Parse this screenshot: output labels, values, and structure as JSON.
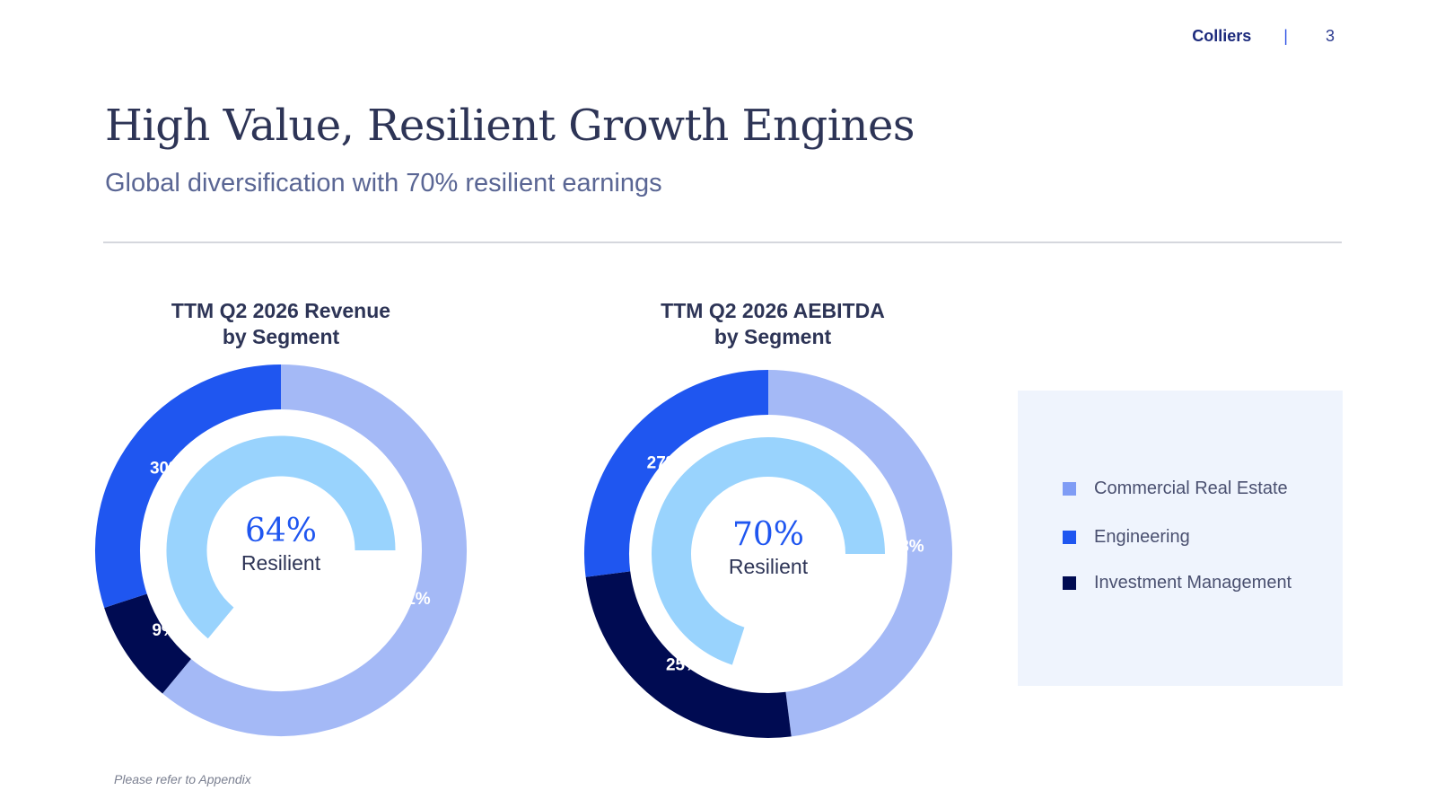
{
  "header": {
    "brand": "Colliers",
    "separator": "|",
    "page_number": "3"
  },
  "title": "High Value, Resilient Growth Engines",
  "subtitle": "Global diversification with 70% resilient earnings",
  "footnote": "Please refer to Appendix",
  "legend": [
    {
      "label": "Commercial Real Estate",
      "color": "#7f9cf5"
    },
    {
      "label": "Engineering",
      "color": "#1f56f0"
    },
    {
      "label": "Investment Management",
      "color": "#000b52"
    }
  ],
  "chart_data": [
    {
      "type": "pie",
      "title_lines": [
        "TTM Q2 2026 Revenue",
        "by Segment"
      ],
      "categories": [
        "Commercial Real Estate",
        "Investment Management",
        "Engineering"
      ],
      "values": [
        61,
        9,
        30
      ],
      "labels": [
        "61%",
        "9%",
        "30%"
      ],
      "colors": [
        "#a4b9f6",
        "#000b52",
        "#1f56f0"
      ],
      "inner_ring": {
        "value": 64,
        "color": "#99d3fd"
      },
      "center_value": "64%",
      "center_label": "Resilient"
    },
    {
      "type": "pie",
      "title_lines": [
        "TTM Q2 2026 AEBITDA",
        "by Segment"
      ],
      "categories": [
        "Commercial Real Estate",
        "Investment Management",
        "Engineering"
      ],
      "values": [
        48,
        25,
        27
      ],
      "labels": [
        "48%",
        "25%",
        "27%"
      ],
      "colors": [
        "#a4b9f6",
        "#000b52",
        "#1f56f0"
      ],
      "inner_ring": {
        "value": 70,
        "color": "#99d3fd"
      },
      "center_value": "70%",
      "center_label": "Resilient"
    }
  ]
}
